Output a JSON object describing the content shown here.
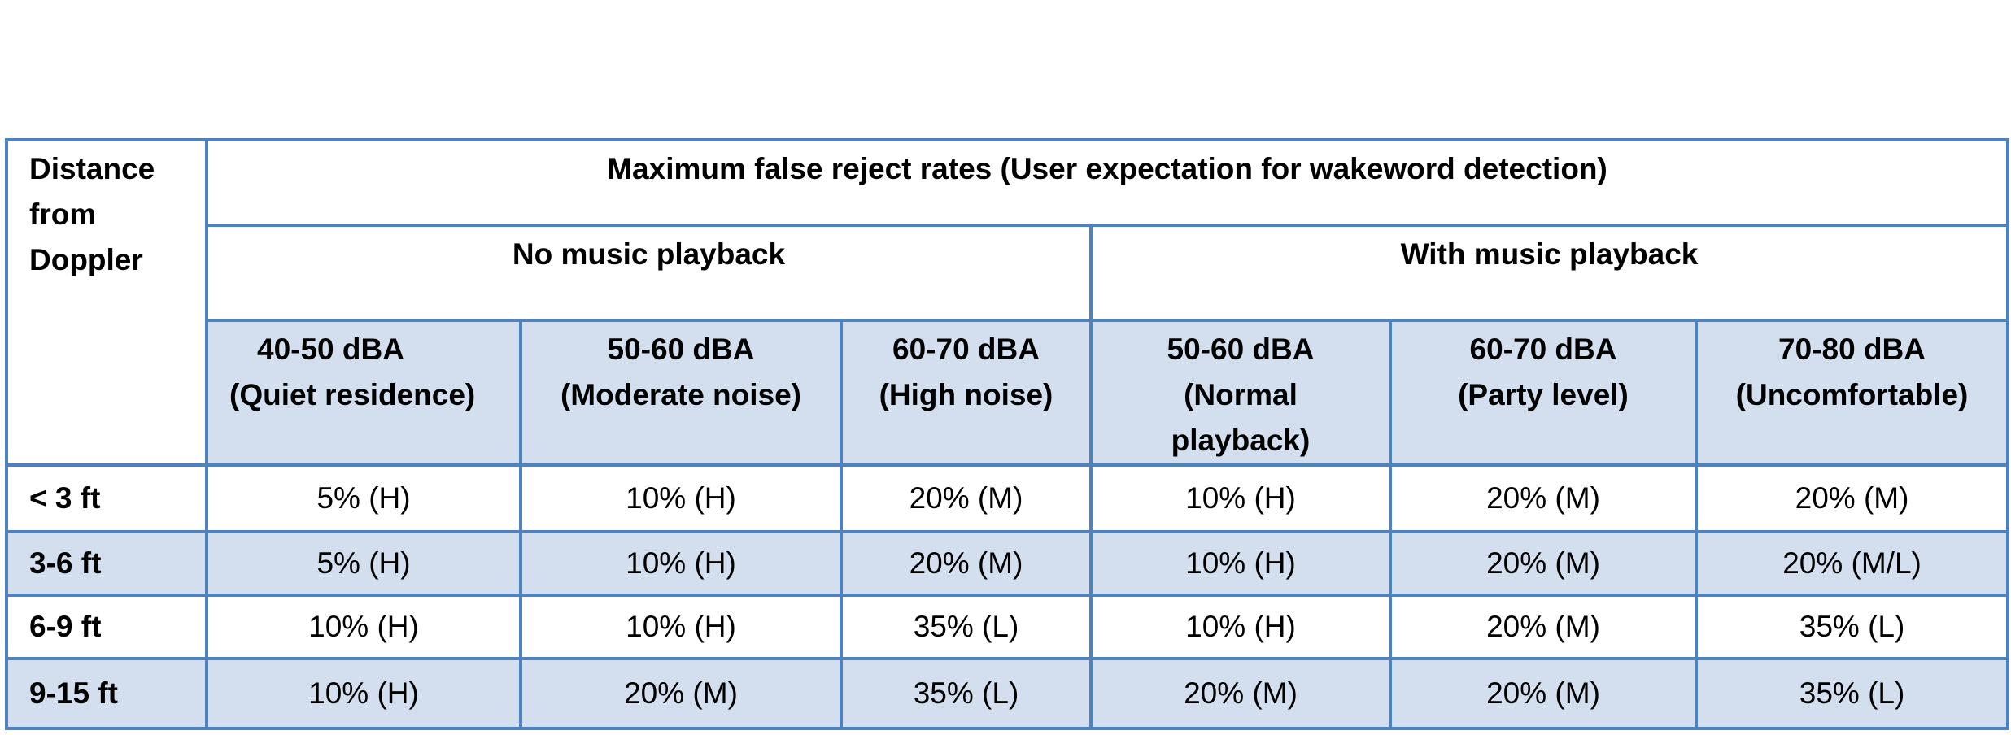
{
  "table": {
    "corner_label": "Distance from Doppler",
    "title": "Maximum false reject rates (User expectation for wakeword detection)",
    "groups": {
      "no_music": "No music playback",
      "with_music": "With music playback"
    },
    "levels": [
      {
        "level": "40-50 dBA",
        "desc": "(Quiet residence)"
      },
      {
        "level": "50-60 dBA",
        "desc": "(Moderate noise)"
      },
      {
        "level": "60-70 dBA",
        "desc": "(High noise)"
      },
      {
        "level": "50-60 dBA",
        "desc": "(Normal playback)"
      },
      {
        "level": "60-70 dBA",
        "desc": "(Party level)"
      },
      {
        "level": "70-80 dBA",
        "desc": "(Uncomfortable)"
      }
    ],
    "rows": [
      {
        "distance": "< 3 ft",
        "values": [
          "5% (H)",
          "10% (H)",
          "20% (M)",
          "10% (H)",
          "20% (M)",
          "20% (M)"
        ]
      },
      {
        "distance": "3-6 ft",
        "values": [
          "5% (H)",
          "10% (H)",
          "20% (M)",
          "10% (H)",
          "20% (M)",
          "20% (M/L)"
        ]
      },
      {
        "distance": "6-9 ft",
        "values": [
          "10% (H)",
          "10% (H)",
          "35% (L)",
          "10% (H)",
          "20% (M)",
          "35% (L)"
        ]
      },
      {
        "distance": "9-15 ft",
        "values": [
          "10% (H)",
          "20% (M)",
          "35% (L)",
          "20% (M)",
          "20% (M)",
          "35% (L)"
        ]
      }
    ],
    "colors": {
      "border": "#4f81bd",
      "shade": "#d3dfee"
    }
  }
}
